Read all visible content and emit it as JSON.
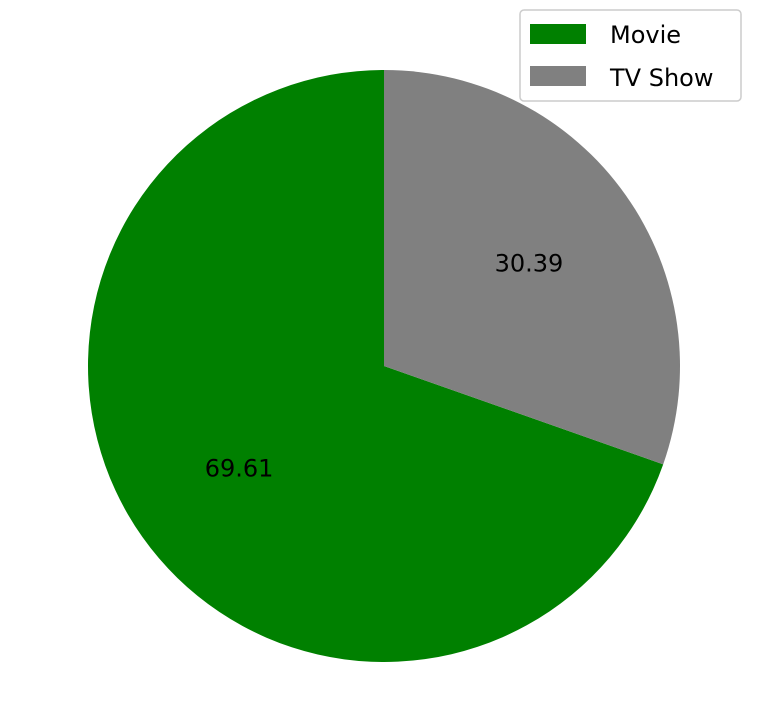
{
  "chart_data": {
    "type": "pie",
    "slices": [
      {
        "label": "Movie",
        "value": 69.61,
        "color": "#008000"
      },
      {
        "label": "TV Show",
        "value": 30.39,
        "color": "#808080"
      }
    ],
    "data_labels": [
      "69.61",
      "30.39"
    ],
    "start_angle_deg": 90,
    "direction": "counterclockwise",
    "legend": {
      "position": "top-right",
      "entries": [
        "Movie",
        "TV Show"
      ]
    }
  }
}
